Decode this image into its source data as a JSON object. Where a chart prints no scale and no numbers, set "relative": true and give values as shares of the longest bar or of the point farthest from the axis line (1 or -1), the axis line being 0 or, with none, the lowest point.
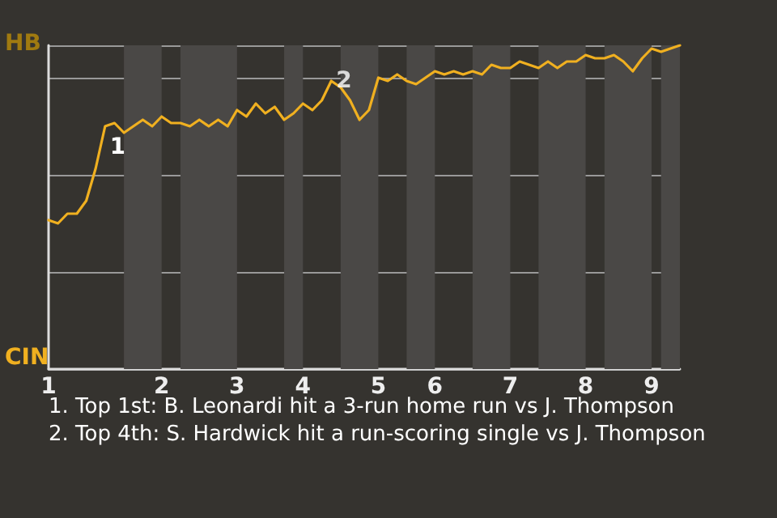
{
  "chart_data": {
    "type": "line",
    "relative": true,
    "categories": [
      "1",
      null,
      null,
      null,
      null,
      null,
      null,
      null,
      null,
      null,
      null,
      null,
      "2",
      null,
      null,
      null,
      null,
      null,
      null,
      null,
      "3",
      null,
      null,
      null,
      null,
      null,
      null,
      "4",
      null,
      null,
      null,
      null,
      null,
      null,
      null,
      "5",
      null,
      null,
      null,
      null,
      null,
      "6",
      null,
      null,
      null,
      null,
      null,
      null,
      null,
      "7",
      null,
      null,
      null,
      null,
      null,
      null,
      null,
      "8",
      null,
      null,
      null,
      null,
      null,
      null,
      "9",
      null,
      null,
      null
    ],
    "series": [
      {
        "color": "#f0b020",
        "values": [
          0.46,
          0.45,
          0.48,
          0.48,
          0.52,
          0.62,
          0.75,
          0.76,
          0.73,
          0.75,
          0.77,
          0.75,
          0.78,
          0.76,
          0.76,
          0.75,
          0.77,
          0.75,
          0.77,
          0.75,
          0.8,
          0.78,
          0.82,
          0.79,
          0.81,
          0.77,
          0.79,
          0.82,
          0.8,
          0.83,
          0.89,
          0.87,
          0.83,
          0.77,
          0.8,
          0.9,
          0.89,
          0.91,
          0.89,
          0.88,
          0.9,
          0.92,
          0.91,
          0.92,
          0.91,
          0.92,
          0.91,
          0.94,
          0.93,
          0.93,
          0.95,
          0.94,
          0.93,
          0.95,
          0.93,
          0.95,
          0.95,
          0.97,
          0.96,
          0.96,
          0.97,
          0.95,
          0.92,
          0.96,
          0.99,
          0.98,
          0.99,
          1
        ],
        "name": null
      }
    ],
    "grid": "y",
    "marker": "none",
    "annotations": [
      "HB",
      "CIN",
      "1",
      {
        "text": "2",
        "y": 0.89
      },
      "1. Top 1st: B. Leonardi hit a 3-run home run vs J. Thompson",
      "2. Top 4th: S. Hardwick hit a run-scoring single vs J. Thompson"
    ]
  }
}
